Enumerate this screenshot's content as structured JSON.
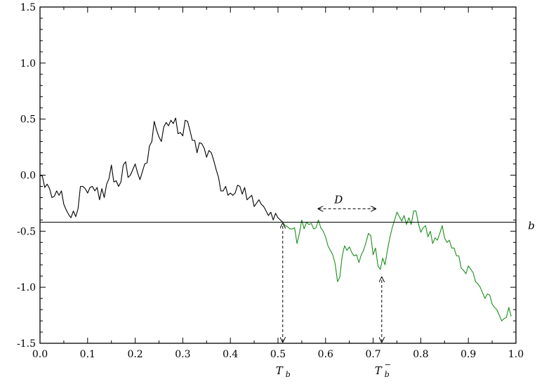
{
  "chart_data": {
    "type": "line",
    "title": "",
    "xlabel": "",
    "ylabel": "",
    "xlim": [
      0.0,
      1.0
    ],
    "ylim": [
      -1.5,
      1.5
    ],
    "grid": false,
    "xticks": [
      "0.0",
      "0.1",
      "0.2",
      "0.3",
      "0.4",
      "0.5",
      "0.6",
      "0.7",
      "0.8",
      "0.9",
      "1.0"
    ],
    "yticks": [
      "1.5",
      "1.0",
      "0.5",
      "0.0",
      "-0.5",
      "-1.0",
      "-1.5"
    ],
    "hline": {
      "y": -0.42,
      "label": "b"
    },
    "series": [
      {
        "color": "#000000",
        "points": [
          [
            0.0,
            0.0
          ],
          [
            0.005,
            -0.01
          ],
          [
            0.01,
            -0.11
          ],
          [
            0.015,
            -0.08
          ],
          [
            0.02,
            -0.12
          ],
          [
            0.025,
            -0.2
          ],
          [
            0.03,
            -0.19
          ],
          [
            0.035,
            -0.14
          ],
          [
            0.04,
            -0.18
          ],
          [
            0.045,
            -0.14
          ],
          [
            0.05,
            -0.26
          ],
          [
            0.055,
            -0.31
          ],
          [
            0.06,
            -0.35
          ],
          [
            0.065,
            -0.38
          ],
          [
            0.07,
            -0.32
          ],
          [
            0.075,
            -0.37
          ],
          [
            0.08,
            -0.3
          ],
          [
            0.085,
            -0.1
          ],
          [
            0.09,
            -0.1
          ],
          [
            0.095,
            -0.12
          ],
          [
            0.1,
            -0.16
          ],
          [
            0.105,
            -0.11
          ],
          [
            0.11,
            -0.1
          ],
          [
            0.115,
            -0.14
          ],
          [
            0.12,
            -0.11
          ],
          [
            0.125,
            -0.22
          ],
          [
            0.13,
            -0.12
          ],
          [
            0.135,
            -0.2
          ],
          [
            0.14,
            -0.08
          ],
          [
            0.145,
            -0.03
          ],
          [
            0.15,
            0.09
          ],
          [
            0.155,
            -0.06
          ],
          [
            0.16,
            -0.05
          ],
          [
            0.165,
            -0.1
          ],
          [
            0.17,
            -0.06
          ],
          [
            0.175,
            0.09
          ],
          [
            0.18,
            0.12
          ],
          [
            0.185,
            -0.02
          ],
          [
            0.19,
            0.0
          ],
          [
            0.195,
            0.05
          ],
          [
            0.2,
            0.1
          ],
          [
            0.205,
            0.02
          ],
          [
            0.21,
            -0.04
          ],
          [
            0.215,
            0.03
          ],
          [
            0.22,
            0.1
          ],
          [
            0.225,
            0.11
          ],
          [
            0.23,
            0.26
          ],
          [
            0.235,
            0.3
          ],
          [
            0.24,
            0.48
          ],
          [
            0.245,
            0.4
          ],
          [
            0.25,
            0.34
          ],
          [
            0.255,
            0.3
          ],
          [
            0.26,
            0.43
          ],
          [
            0.265,
            0.47
          ],
          [
            0.27,
            0.44
          ],
          [
            0.275,
            0.49
          ],
          [
            0.28,
            0.46
          ],
          [
            0.285,
            0.51
          ],
          [
            0.29,
            0.37
          ],
          [
            0.295,
            0.38
          ],
          [
            0.3,
            0.35
          ],
          [
            0.305,
            0.49
          ],
          [
            0.31,
            0.48
          ],
          [
            0.315,
            0.4
          ],
          [
            0.32,
            0.31
          ],
          [
            0.325,
            0.31
          ],
          [
            0.33,
            0.2
          ],
          [
            0.335,
            0.29
          ],
          [
            0.34,
            0.28
          ],
          [
            0.345,
            0.24
          ],
          [
            0.35,
            0.16
          ],
          [
            0.355,
            0.22
          ],
          [
            0.36,
            0.2
          ],
          [
            0.365,
            0.13
          ],
          [
            0.37,
            0.05
          ],
          [
            0.375,
            -0.02
          ],
          [
            0.38,
            -0.14
          ],
          [
            0.385,
            -0.14
          ],
          [
            0.39,
            -0.1
          ],
          [
            0.395,
            -0.18
          ],
          [
            0.4,
            -0.16
          ],
          [
            0.405,
            -0.18
          ],
          [
            0.41,
            -0.16
          ],
          [
            0.415,
            -0.09
          ],
          [
            0.42,
            -0.1
          ],
          [
            0.425,
            -0.17
          ],
          [
            0.43,
            -0.11
          ],
          [
            0.435,
            -0.22
          ],
          [
            0.44,
            -0.2
          ],
          [
            0.445,
            -0.18
          ],
          [
            0.45,
            -0.28
          ],
          [
            0.455,
            -0.25
          ],
          [
            0.46,
            -0.22
          ],
          [
            0.465,
            -0.26
          ],
          [
            0.47,
            -0.28
          ],
          [
            0.475,
            -0.32
          ],
          [
            0.48,
            -0.36
          ],
          [
            0.485,
            -0.33
          ],
          [
            0.49,
            -0.4
          ],
          [
            0.495,
            -0.34
          ],
          [
            0.5,
            -0.38
          ],
          [
            0.505,
            -0.4
          ],
          [
            0.51,
            -0.42
          ]
        ]
      },
      {
        "color": "#1a8f1a",
        "points": [
          [
            0.51,
            -0.42
          ],
          [
            0.515,
            -0.45
          ],
          [
            0.52,
            -0.46
          ],
          [
            0.525,
            -0.48
          ],
          [
            0.53,
            -0.48
          ],
          [
            0.535,
            -0.47
          ],
          [
            0.54,
            -0.61
          ],
          [
            0.545,
            -0.52
          ],
          [
            0.55,
            -0.4
          ],
          [
            0.555,
            -0.48
          ],
          [
            0.56,
            -0.42
          ],
          [
            0.565,
            -0.44
          ],
          [
            0.57,
            -0.43
          ],
          [
            0.575,
            -0.48
          ],
          [
            0.58,
            -0.47
          ],
          [
            0.585,
            -0.4
          ],
          [
            0.59,
            -0.47
          ],
          [
            0.595,
            -0.5
          ],
          [
            0.6,
            -0.55
          ],
          [
            0.605,
            -0.63
          ],
          [
            0.61,
            -0.67
          ],
          [
            0.615,
            -0.71
          ],
          [
            0.62,
            -0.79
          ],
          [
            0.625,
            -0.95
          ],
          [
            0.63,
            -0.91
          ],
          [
            0.635,
            -0.72
          ],
          [
            0.64,
            -0.63
          ],
          [
            0.645,
            -0.67
          ],
          [
            0.65,
            -0.64
          ],
          [
            0.655,
            -0.69
          ],
          [
            0.66,
            -0.72
          ],
          [
            0.665,
            -0.71
          ],
          [
            0.67,
            -0.78
          ],
          [
            0.675,
            -0.71
          ],
          [
            0.68,
            -0.67
          ],
          [
            0.685,
            -0.6
          ],
          [
            0.69,
            -0.52
          ],
          [
            0.695,
            -0.54
          ],
          [
            0.7,
            -0.71
          ],
          [
            0.705,
            -0.65
          ],
          [
            0.71,
            -0.81
          ],
          [
            0.715,
            -0.84
          ],
          [
            0.72,
            -0.74
          ],
          [
            0.725,
            -0.8
          ],
          [
            0.73,
            -0.67
          ],
          [
            0.735,
            -0.56
          ],
          [
            0.74,
            -0.47
          ],
          [
            0.745,
            -0.4
          ],
          [
            0.75,
            -0.33
          ],
          [
            0.755,
            -0.37
          ],
          [
            0.76,
            -0.41
          ],
          [
            0.765,
            -0.36
          ],
          [
            0.77,
            -0.44
          ],
          [
            0.775,
            -0.38
          ],
          [
            0.78,
            -0.44
          ],
          [
            0.785,
            -0.32
          ],
          [
            0.79,
            -0.32
          ],
          [
            0.795,
            -0.43
          ],
          [
            0.8,
            -0.51
          ],
          [
            0.805,
            -0.47
          ],
          [
            0.81,
            -0.45
          ],
          [
            0.815,
            -0.55
          ],
          [
            0.82,
            -0.5
          ],
          [
            0.825,
            -0.61
          ],
          [
            0.83,
            -0.56
          ],
          [
            0.835,
            -0.58
          ],
          [
            0.84,
            -0.52
          ],
          [
            0.845,
            -0.45
          ],
          [
            0.85,
            -0.56
          ],
          [
            0.855,
            -0.6
          ],
          [
            0.86,
            -0.58
          ],
          [
            0.865,
            -0.65
          ],
          [
            0.87,
            -0.65
          ],
          [
            0.875,
            -0.72
          ],
          [
            0.88,
            -0.72
          ],
          [
            0.885,
            -0.83
          ],
          [
            0.89,
            -0.85
          ],
          [
            0.895,
            -0.88
          ],
          [
            0.9,
            -0.81
          ],
          [
            0.905,
            -0.84
          ],
          [
            0.91,
            -0.87
          ],
          [
            0.915,
            -0.95
          ],
          [
            0.92,
            -0.97
          ],
          [
            0.925,
            -1.0
          ],
          [
            0.93,
            -1.05
          ],
          [
            0.935,
            -1.1
          ],
          [
            0.94,
            -1.06
          ],
          [
            0.945,
            -1.07
          ],
          [
            0.95,
            -1.15
          ],
          [
            0.955,
            -1.18
          ],
          [
            0.96,
            -1.2
          ],
          [
            0.965,
            -1.25
          ],
          [
            0.97,
            -1.3
          ],
          [
            0.975,
            -1.28
          ],
          [
            0.98,
            -1.27
          ],
          [
            0.985,
            -1.18
          ],
          [
            0.99,
            -1.26
          ]
        ]
      }
    ],
    "annotations": {
      "tb": {
        "text": "T",
        "sub": "b",
        "x": 0.51
      },
      "tb_minus": {
        "text": "T",
        "sub": "b",
        "sup": "−",
        "x": 0.718
      },
      "d": {
        "text": "D",
        "x_from": 0.585,
        "x_to": 0.705,
        "y": -0.3
      },
      "arrow_tb": {
        "x": 0.51,
        "y_from": -1.5,
        "y_to": -0.42
      },
      "arrow_tb_minus": {
        "x": 0.718,
        "y_from": -1.5,
        "y_to": -0.9
      }
    }
  }
}
